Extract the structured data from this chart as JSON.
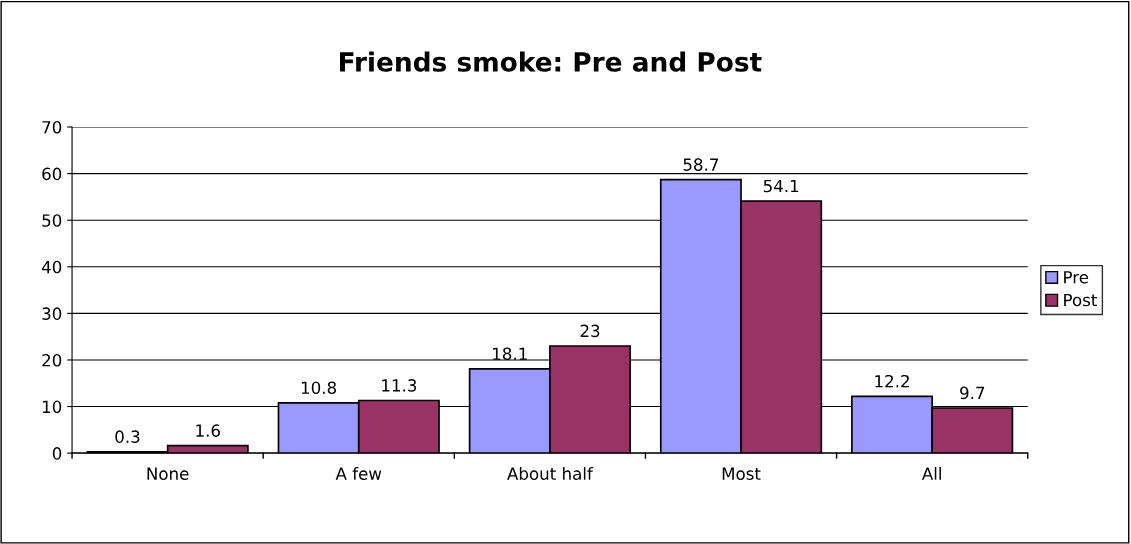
{
  "chart_data": {
    "type": "bar",
    "title": "Friends smoke: Pre and Post",
    "categories": [
      "None",
      "A few",
      "About half",
      "Most",
      "All"
    ],
    "series": [
      {
        "name": "Pre",
        "color": "#9999ff",
        "values": [
          0.3,
          10.8,
          18.1,
          58.7,
          12.2
        ]
      },
      {
        "name": "Post",
        "color": "#993366",
        "values": [
          1.6,
          11.3,
          23,
          54.1,
          9.7
        ]
      }
    ],
    "ylim": [
      0,
      70
    ],
    "yticks": [
      0,
      10,
      20,
      30,
      40,
      50,
      60,
      70
    ],
    "grid": "y",
    "legend": "right",
    "data_labels": true
  }
}
